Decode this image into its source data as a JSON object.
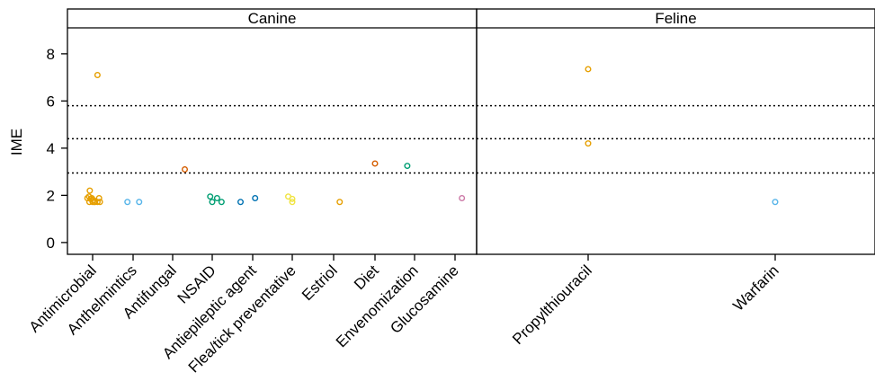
{
  "chart_data": {
    "type": "scatter",
    "ylabel": "IME",
    "ylim": [
      -0.5,
      9.1
    ],
    "yticks": [
      0,
      2,
      4,
      6,
      8
    ],
    "reference_lines": [
      2.95,
      4.4,
      5.8
    ],
    "grid": false,
    "legend": "none",
    "panels": [
      {
        "name": "Canine",
        "categories": [
          "Antimicrobial",
          "Anthelmintics",
          "Antifungal",
          "NSAID",
          "Antiepileptic agent",
          "Flea/tick preventative",
          "Estriol",
          "Diet",
          "Envenomization",
          "Glucosamine"
        ],
        "points": [
          {
            "category": "Antimicrobial",
            "offset": -0.13,
            "y": 1.88,
            "color": "#E69F00"
          },
          {
            "category": "Antimicrobial",
            "offset": -0.09,
            "y": 1.95,
            "color": "#E69F00"
          },
          {
            "category": "Antimicrobial",
            "offset": -0.07,
            "y": 2.2,
            "color": "#E69F00"
          },
          {
            "category": "Antimicrobial",
            "offset": -0.05,
            "y": 1.85,
            "color": "#E69F00"
          },
          {
            "category": "Antimicrobial",
            "offset": -0.08,
            "y": 1.72,
            "color": "#E69F00"
          },
          {
            "category": "Antimicrobial",
            "offset": -0.02,
            "y": 1.88,
            "color": "#E69F00"
          },
          {
            "category": "Antimicrobial",
            "offset": 0.0,
            "y": 1.72,
            "color": "#E69F00"
          },
          {
            "category": "Antimicrobial",
            "offset": 0.02,
            "y": 1.8,
            "color": "#E69F00"
          },
          {
            "category": "Antimicrobial",
            "offset": 0.04,
            "y": 1.72,
            "color": "#E69F00"
          },
          {
            "category": "Antimicrobial",
            "offset": 0.06,
            "y": 1.72,
            "color": "#E69F00"
          },
          {
            "category": "Antimicrobial",
            "offset": 0.12,
            "y": 1.72,
            "color": "#E69F00"
          },
          {
            "category": "Antimicrobial",
            "offset": 0.16,
            "y": 1.88,
            "color": "#E69F00"
          },
          {
            "category": "Antimicrobial",
            "offset": 0.18,
            "y": 1.72,
            "color": "#E69F00"
          },
          {
            "category": "Antimicrobial",
            "offset": 0.12,
            "y": 7.1,
            "color": "#E69F00"
          },
          {
            "category": "Anthelmintics",
            "offset": -0.14,
            "y": 1.72,
            "color": "#56B4E9"
          },
          {
            "category": "Anthelmintics",
            "offset": 0.15,
            "y": 1.72,
            "color": "#56B4E9"
          },
          {
            "category": "Antifungal",
            "offset": 0.3,
            "y": 3.1,
            "color": "#D55E00"
          },
          {
            "category": "NSAID",
            "offset": -0.05,
            "y": 1.95,
            "color": "#009E73"
          },
          {
            "category": "NSAID",
            "offset": 0.0,
            "y": 1.72,
            "color": "#009E73"
          },
          {
            "category": "NSAID",
            "offset": 0.12,
            "y": 1.88,
            "color": "#009E73"
          },
          {
            "category": "NSAID",
            "offset": 0.23,
            "y": 1.72,
            "color": "#009E73"
          },
          {
            "category": "Antiepileptic agent",
            "offset": -0.3,
            "y": 1.72,
            "color": "#0072B2"
          },
          {
            "category": "Antiepileptic agent",
            "offset": 0.06,
            "y": 1.88,
            "color": "#0072B2"
          },
          {
            "category": "Flea/tick preventative",
            "offset": -0.1,
            "y": 1.95,
            "color": "#F0E442"
          },
          {
            "category": "Flea/tick preventative",
            "offset": 0.0,
            "y": 1.85,
            "color": "#F0E442"
          },
          {
            "category": "Flea/tick preventative",
            "offset": 0.0,
            "y": 1.72,
            "color": "#F0E442"
          },
          {
            "category": "Estriol",
            "offset": 0.15,
            "y": 1.72,
            "color": "#E69F00"
          },
          {
            "category": "Diet",
            "offset": 0.0,
            "y": 3.35,
            "color": "#D55E00"
          },
          {
            "category": "Envenomization",
            "offset": -0.18,
            "y": 3.25,
            "color": "#009E73"
          },
          {
            "category": "Glucosamine",
            "offset": 0.17,
            "y": 1.88,
            "color": "#CC79A7"
          }
        ]
      },
      {
        "name": "Feline",
        "categories": [
          "Propylthiouracil",
          "Warfarin"
        ],
        "points": [
          {
            "category": "Propylthiouracil",
            "offset": 0.0,
            "y": 7.35,
            "color": "#E69F00"
          },
          {
            "category": "Propylthiouracil",
            "offset": 0.0,
            "y": 4.2,
            "color": "#E69F00"
          },
          {
            "category": "Warfarin",
            "offset": 0.0,
            "y": 1.72,
            "color": "#56B4E9"
          }
        ]
      }
    ]
  }
}
